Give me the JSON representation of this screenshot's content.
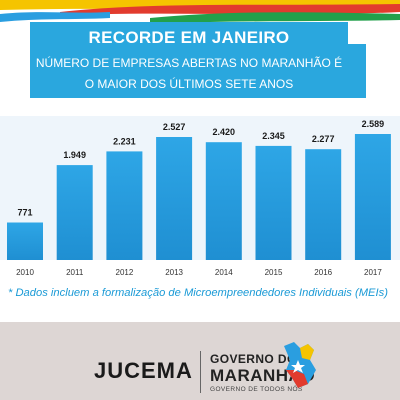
{
  "banner": {
    "title": "RECORDE EM JANEIRO",
    "line1": "NÚMERO DE EMPRESAS ABERTAS NO MARANHÃO  É",
    "line2": "O MAIOR DOS ÚLTIMOS SETE ANOS"
  },
  "chart_data": {
    "type": "bar",
    "categories": [
      "2010",
      "2011",
      "2012",
      "2013",
      "2014",
      "2015",
      "2016",
      "2017"
    ],
    "values": [
      771,
      1949,
      2231,
      2527,
      2420,
      2345,
      2277,
      2589
    ],
    "value_labels": [
      "771",
      "1.949",
      "2.231",
      "2.527",
      "2.420",
      "2.345",
      "2.277",
      "2.589"
    ],
    "title": "",
    "xlabel": "",
    "ylabel": "",
    "ylim": [
      0,
      2589
    ],
    "grid": false,
    "bar_color": "#2a9ee0"
  },
  "note": "* Dados incluem a formalização de Microempreendedores Individuais (MEIs)",
  "footer": {
    "brand": "JUCEMA",
    "gov_line1": "GOVERNO DO",
    "gov_line2": "MARANHÃO",
    "gov_line3": "GOVERNO DE TODOS NÓS"
  },
  "colors": {
    "banner": "#2aa7de",
    "note": "#1a9ad6",
    "footer_bg": "#ddd6d4"
  }
}
